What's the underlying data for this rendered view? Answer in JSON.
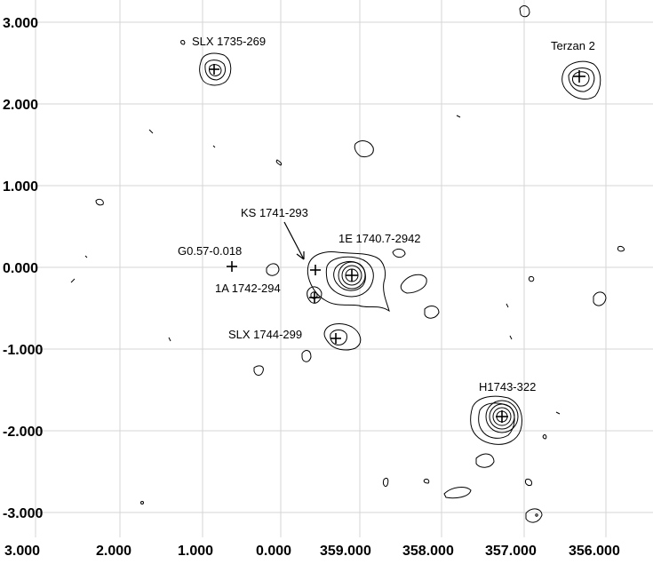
{
  "axes": {
    "x_ticks": [
      "3.000",
      "2.000",
      "1.000",
      "0.000",
      "359.000",
      "358.000",
      "357.000",
      "356.000"
    ],
    "y_ticks": [
      "3.000",
      "2.000",
      "1.000",
      "0.000",
      "-1.000",
      "-2.000",
      "-3.000"
    ]
  },
  "sources": [
    {
      "id": "slx1735",
      "label": "SLX 1735-269"
    },
    {
      "id": "terzan2",
      "label": "Terzan 2"
    },
    {
      "id": "ks1741",
      "label": "KS 1741-293"
    },
    {
      "id": "e1740",
      "label": "1E 1740.7-2942"
    },
    {
      "id": "g057",
      "label": "G0.57-0.018"
    },
    {
      "id": "a1742",
      "label": "1A 1742-294"
    },
    {
      "id": "slx1744",
      "label": "SLX 1744-299"
    },
    {
      "id": "h1743",
      "label": "H1743-322"
    }
  ]
}
